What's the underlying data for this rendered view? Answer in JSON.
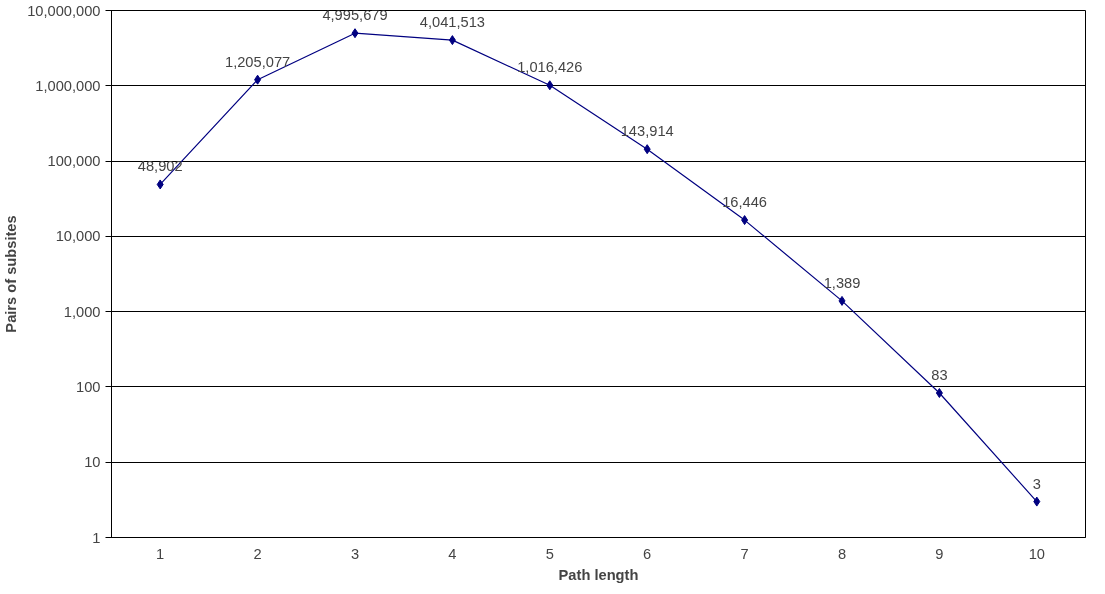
{
  "chart_data": {
    "type": "line",
    "xlabel": "Path length",
    "ylabel": "Pairs of subsites",
    "categories": [
      "1",
      "2",
      "3",
      "4",
      "5",
      "6",
      "7",
      "8",
      "9",
      "10"
    ],
    "series": [
      {
        "color": "#000080",
        "values": [
          48902,
          1205077,
          4995679,
          4041513,
          1016426,
          143914,
          16446,
          1389,
          83,
          3
        ],
        "value_labels": [
          "48,902",
          "1,205,077",
          "4,995,679",
          "4,041,513",
          "1,016,426",
          "143,914",
          "16,446",
          "1,389",
          "83",
          "3"
        ]
      }
    ],
    "log": true,
    "ylim": [
      1,
      10000000
    ],
    "yticks": [
      {
        "value": 1,
        "label": "1"
      },
      {
        "value": 10,
        "label": "10"
      },
      {
        "value": 100,
        "label": "100"
      },
      {
        "value": 1000,
        "label": "1,000"
      },
      {
        "value": 10000,
        "label": "10,000"
      },
      {
        "value": 100000,
        "label": "100,000"
      },
      {
        "value": 1000000,
        "label": "1,000,000"
      },
      {
        "value": 10000000,
        "label": "10,000,000"
      }
    ],
    "grid": "y",
    "marker": "diamond",
    "line_style": "solid"
  }
}
